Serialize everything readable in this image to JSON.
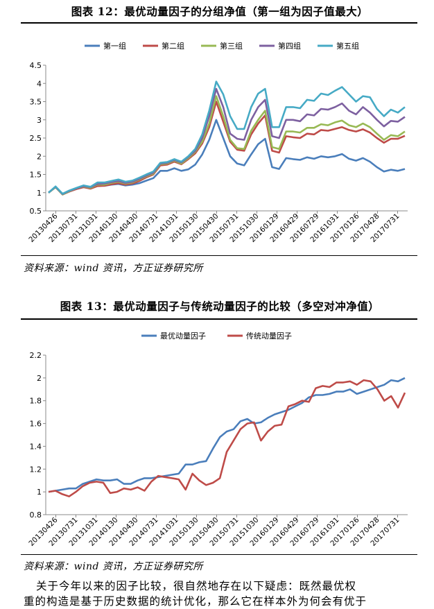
{
  "figure12": {
    "title": "图表 12：最优动量因子的分组净值（第一组为因子值最大）",
    "source": "资料来源：wind 资讯，方正证券研究所",
    "chart_data": {
      "type": "line",
      "title": "",
      "xlabel": "",
      "ylabel": "",
      "ylim": [
        0.5,
        4.5
      ],
      "yticks": [
        0.5,
        1,
        1.5,
        2,
        2.5,
        3,
        3.5,
        4,
        4.5
      ],
      "grid": false,
      "legend": "top",
      "x_ticks": [
        "20130426",
        "20130731",
        "20131031",
        "20140130",
        "20140430",
        "20140731",
        "20141031",
        "20150130",
        "20150430",
        "20150731",
        "20151030",
        "20160129",
        "20160429",
        "20160729",
        "20161031",
        "20170126",
        "20170428",
        "20170731"
      ],
      "series": [
        {
          "name": "第一组",
          "color": "#4a7ebb",
          "values": [
            1.0,
            1.15,
            0.96,
            1.05,
            1.1,
            1.15,
            1.12,
            1.2,
            1.19,
            1.22,
            1.24,
            1.2,
            1.22,
            1.26,
            1.33,
            1.4,
            1.6,
            1.6,
            1.67,
            1.6,
            1.64,
            1.77,
            2.05,
            2.45,
            3.0,
            2.5,
            2.0,
            1.8,
            1.75,
            2.05,
            2.33,
            2.48,
            1.7,
            1.65,
            1.95,
            1.92,
            1.9,
            1.97,
            1.93,
            2.0,
            1.97,
            2.0,
            2.06,
            1.93,
            1.88,
            1.95,
            1.85,
            1.7,
            1.58,
            1.63,
            1.6,
            1.65
          ]
        },
        {
          "name": "第二组",
          "color": "#be4b48",
          "values": [
            1.0,
            1.15,
            0.95,
            1.03,
            1.1,
            1.15,
            1.11,
            1.18,
            1.19,
            1.23,
            1.26,
            1.22,
            1.25,
            1.32,
            1.42,
            1.5,
            1.75,
            1.77,
            1.85,
            1.78,
            1.92,
            2.08,
            2.35,
            2.8,
            3.5,
            2.95,
            2.4,
            2.18,
            2.15,
            2.6,
            2.9,
            3.12,
            2.15,
            2.1,
            2.55,
            2.52,
            2.5,
            2.62,
            2.6,
            2.72,
            2.7,
            2.75,
            2.8,
            2.72,
            2.68,
            2.74,
            2.65,
            2.5,
            2.37,
            2.48,
            2.48,
            2.56
          ]
        },
        {
          "name": "第三组",
          "color": "#98b954",
          "values": [
            1.0,
            1.15,
            0.95,
            1.04,
            1.12,
            1.17,
            1.13,
            1.22,
            1.22,
            1.27,
            1.3,
            1.25,
            1.28,
            1.36,
            1.45,
            1.52,
            1.78,
            1.8,
            1.88,
            1.8,
            1.95,
            2.12,
            2.4,
            2.9,
            3.65,
            3.1,
            2.45,
            2.22,
            2.2,
            2.7,
            3.0,
            3.25,
            2.25,
            2.2,
            2.68,
            2.68,
            2.65,
            2.78,
            2.78,
            2.88,
            2.85,
            2.93,
            2.98,
            2.85,
            2.8,
            2.9,
            2.8,
            2.62,
            2.45,
            2.58,
            2.55,
            2.68
          ]
        },
        {
          "name": "第四组",
          "color": "#7d60a0",
          "values": [
            1.0,
            1.16,
            0.96,
            1.05,
            1.12,
            1.18,
            1.15,
            1.24,
            1.25,
            1.29,
            1.32,
            1.27,
            1.3,
            1.38,
            1.47,
            1.55,
            1.8,
            1.82,
            1.9,
            1.83,
            1.98,
            2.15,
            2.5,
            3.1,
            3.85,
            3.35,
            2.62,
            2.48,
            2.45,
            3.0,
            3.35,
            3.55,
            2.55,
            2.5,
            3.0,
            3.0,
            2.96,
            3.15,
            3.12,
            3.3,
            3.28,
            3.35,
            3.45,
            3.25,
            3.15,
            3.35,
            3.2,
            3.0,
            2.82,
            2.97,
            2.95,
            3.08
          ]
        },
        {
          "name": "第五组",
          "color": "#46aac5",
          "values": [
            1.0,
            1.17,
            0.97,
            1.06,
            1.13,
            1.2,
            1.16,
            1.28,
            1.28,
            1.32,
            1.36,
            1.3,
            1.33,
            1.41,
            1.5,
            1.58,
            1.82,
            1.84,
            1.92,
            1.85,
            2.0,
            2.2,
            2.6,
            3.25,
            4.05,
            3.7,
            3.1,
            2.75,
            2.75,
            3.35,
            3.72,
            3.85,
            2.8,
            2.8,
            3.35,
            3.35,
            3.32,
            3.55,
            3.52,
            3.72,
            3.68,
            3.8,
            3.9,
            3.7,
            3.5,
            3.65,
            3.62,
            3.3,
            3.1,
            3.28,
            3.2,
            3.35
          ]
        }
      ]
    }
  },
  "figure13": {
    "title": "图表 13：最优动量因子与传统动量因子的比较（多空对冲净值）",
    "source": "资料来源：wind 资讯，方正证券研究所",
    "chart_data": {
      "type": "line",
      "title": "",
      "xlabel": "",
      "ylabel": "",
      "ylim": [
        0.8,
        2.2
      ],
      "yticks": [
        0.8,
        1,
        1.2,
        1.4,
        1.6,
        1.8,
        2,
        2.2
      ],
      "grid": false,
      "legend": "top",
      "x_ticks": [
        "20130426",
        "20130731",
        "20131031",
        "20140130",
        "20140430",
        "20140731",
        "20141031",
        "20150130",
        "20150430",
        "20150731",
        "20151030",
        "20160129",
        "20160429",
        "20160729",
        "20161031",
        "20170126",
        "20170428",
        "20170731"
      ],
      "series": [
        {
          "name": "最优动量因子",
          "color": "#4a7ebb",
          "values": [
            1.0,
            1.01,
            1.02,
            1.03,
            1.03,
            1.07,
            1.09,
            1.11,
            1.1,
            1.1,
            1.11,
            1.07,
            1.07,
            1.1,
            1.12,
            1.12,
            1.13,
            1.14,
            1.15,
            1.16,
            1.24,
            1.24,
            1.26,
            1.27,
            1.38,
            1.48,
            1.53,
            1.55,
            1.62,
            1.64,
            1.6,
            1.61,
            1.65,
            1.68,
            1.7,
            1.72,
            1.75,
            1.78,
            1.83,
            1.85,
            1.85,
            1.86,
            1.88,
            1.88,
            1.9,
            1.86,
            1.88,
            1.9,
            1.92,
            1.94,
            1.98,
            1.97,
            2.0
          ]
        },
        {
          "name": "传统动量因子",
          "color": "#be4b48",
          "values": [
            1.0,
            1.01,
            0.98,
            0.96,
            1.0,
            1.05,
            1.08,
            1.09,
            1.08,
            0.99,
            1.0,
            1.03,
            1.02,
            1.04,
            1.01,
            1.09,
            1.14,
            1.13,
            1.12,
            1.11,
            1.02,
            1.16,
            1.1,
            1.06,
            1.08,
            1.12,
            1.35,
            1.45,
            1.55,
            1.6,
            1.61,
            1.45,
            1.53,
            1.58,
            1.59,
            1.75,
            1.77,
            1.8,
            1.79,
            1.91,
            1.93,
            1.92,
            1.96,
            1.96,
            1.97,
            1.94,
            1.98,
            1.97,
            1.9,
            1.8,
            1.84,
            1.74,
            1.87
          ]
        }
      ]
    }
  },
  "paragraph": {
    "line1": "关于今年以来的因子比较，很自然地存在以下疑虑：既然最优权",
    "line2": "重的构造是基于历史数据的统计优化，那么它在样本外为何会有优于"
  }
}
